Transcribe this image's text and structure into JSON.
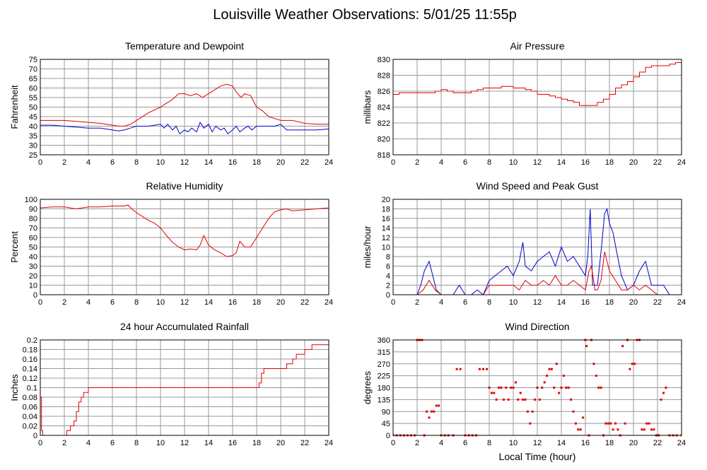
{
  "title": "Louisville Weather Observations: 5/01/25 11:55p",
  "xlabel": "Local Time (hour)",
  "chart_data": [
    {
      "id": "temp",
      "type": "line",
      "title": "Temperature and Dewpoint",
      "ylabel": "Fahrenheit",
      "xlim": [
        0,
        24
      ],
      "ylim": [
        25,
        75
      ],
      "xticks": [
        0,
        2,
        4,
        6,
        8,
        10,
        12,
        14,
        16,
        18,
        20,
        22,
        24
      ],
      "yticks": [
        25,
        30,
        35,
        40,
        45,
        50,
        55,
        60,
        65,
        70,
        75
      ],
      "grid": true,
      "step": false,
      "series": [
        {
          "color": "#e00000",
          "x": [
            0,
            1,
            2,
            3,
            4,
            5,
            6,
            6.5,
            7,
            7.5,
            8,
            9,
            10,
            10.5,
            11,
            11.5,
            12,
            12.5,
            13,
            13.5,
            14,
            14.5,
            15,
            15.5,
            16,
            16.3,
            16.7,
            17,
            17.5,
            18,
            18.5,
            19,
            19.5,
            20,
            20.5,
            21,
            22,
            23,
            24
          ],
          "y": [
            43,
            43,
            43,
            42.5,
            42,
            41.5,
            40.5,
            40,
            40,
            41,
            43,
            47,
            50,
            52,
            54,
            57,
            57,
            56,
            57,
            55,
            57,
            59,
            61,
            62,
            61,
            58,
            55,
            57,
            56,
            50,
            48,
            45,
            44,
            43,
            43,
            43,
            41.5,
            41,
            41
          ]
        },
        {
          "color": "#0000cc",
          "x": [
            0,
            1,
            2,
            3,
            4,
            5,
            6,
            6.5,
            7,
            7.5,
            8,
            9,
            10,
            10.3,
            10.6,
            11,
            11.3,
            11.6,
            12,
            12.3,
            12.6,
            13,
            13.3,
            13.6,
            14,
            14.3,
            14.6,
            15,
            15.3,
            15.6,
            16,
            16.3,
            16.6,
            17,
            17.3,
            17.6,
            18,
            18.5,
            19,
            19.5,
            20,
            20.5,
            21,
            22,
            23,
            24
          ],
          "y": [
            40.5,
            40.5,
            40,
            39.5,
            39,
            39,
            38,
            37.5,
            38,
            39,
            40,
            40,
            41,
            39,
            41,
            38,
            40,
            36,
            38,
            37,
            39,
            37,
            42,
            39,
            41,
            37,
            40,
            38,
            39,
            36,
            38,
            40,
            37,
            39,
            40,
            38,
            40,
            40,
            40,
            40,
            41,
            38,
            38,
            38,
            38,
            38.5
          ]
        }
      ]
    },
    {
      "id": "pressure",
      "type": "line",
      "title": "Air Pressure",
      "ylabel": "millibars",
      "xlim": [
        0,
        24
      ],
      "ylim": [
        818,
        830
      ],
      "xticks": [
        0,
        2,
        4,
        6,
        8,
        10,
        12,
        14,
        16,
        18,
        20,
        22,
        24
      ],
      "yticks": [
        818,
        820,
        822,
        824,
        826,
        828,
        830
      ],
      "grid": true,
      "step": true,
      "series": [
        {
          "color": "#e00000",
          "x": [
            0,
            0.5,
            1,
            2,
            3,
            3.5,
            4,
            4.5,
            5,
            6,
            6.5,
            7,
            7.5,
            8,
            9,
            10,
            11,
            11.5,
            12,
            13,
            13.5,
            14,
            14.5,
            15,
            15.5,
            16,
            16.5,
            17,
            17.5,
            18,
            18.5,
            19,
            19.5,
            20,
            20.5,
            21,
            21.5,
            22,
            23,
            23.5,
            24
          ],
          "y": [
            825.6,
            825.8,
            825.8,
            825.8,
            825.8,
            826.0,
            826.2,
            826.0,
            825.8,
            825.8,
            826.0,
            826.2,
            826.4,
            826.4,
            826.6,
            826.4,
            826.2,
            826.0,
            825.6,
            825.4,
            825.2,
            825.0,
            824.8,
            824.6,
            824.2,
            824.2,
            824.2,
            824.6,
            825.0,
            825.6,
            826.4,
            826.8,
            827.2,
            827.8,
            828.4,
            829.0,
            829.2,
            829.2,
            829.4,
            829.6,
            829.8
          ]
        }
      ]
    },
    {
      "id": "humidity",
      "type": "line",
      "title": "Relative Humidity",
      "ylabel": "Percent",
      "xlim": [
        0,
        24
      ],
      "ylim": [
        0,
        100
      ],
      "xticks": [
        0,
        2,
        4,
        6,
        8,
        10,
        12,
        14,
        16,
        18,
        20,
        22,
        24
      ],
      "yticks": [
        0,
        10,
        20,
        30,
        40,
        50,
        60,
        70,
        80,
        90,
        100
      ],
      "grid": true,
      "step": false,
      "series": [
        {
          "color": "#e00000",
          "x": [
            0,
            1,
            2,
            3,
            4,
            5,
            6,
            7,
            7.3,
            7.6,
            8,
            8.5,
            9,
            9.5,
            10,
            10.5,
            11,
            11.5,
            12,
            12.5,
            13,
            13.3,
            13.6,
            14,
            14.5,
            15,
            15.5,
            16,
            16.3,
            16.6,
            17,
            17.5,
            18,
            18.5,
            19,
            19.5,
            20,
            20.5,
            21,
            22,
            23,
            24
          ],
          "y": [
            91,
            92,
            92,
            90,
            92,
            92,
            93,
            93,
            94,
            90,
            86,
            82,
            78,
            75,
            70,
            62,
            55,
            50,
            47,
            48,
            47,
            52,
            62,
            52,
            47,
            44,
            40,
            41,
            44,
            56,
            50,
            50,
            60,
            70,
            80,
            87,
            89,
            90,
            88,
            89,
            90,
            91
          ]
        }
      ]
    },
    {
      "id": "wind",
      "type": "line",
      "title": "Wind Speed and Peak Gust",
      "ylabel": "miles/hour",
      "xlim": [
        0,
        24
      ],
      "ylim": [
        0,
        20
      ],
      "xticks": [
        0,
        2,
        4,
        6,
        8,
        10,
        12,
        14,
        16,
        18,
        20,
        22,
        24
      ],
      "yticks": [
        0,
        2,
        4,
        6,
        8,
        10,
        12,
        14,
        16,
        18,
        20
      ],
      "grid": true,
      "step": false,
      "series": [
        {
          "color": "#0000cc",
          "x": [
            0,
            1,
            2,
            2.3,
            2.6,
            3,
            3.3,
            3.6,
            4,
            5,
            5.5,
            6,
            6.5,
            7,
            7.5,
            8,
            8.5,
            9,
            9.5,
            10,
            10.5,
            10.8,
            11,
            11.5,
            12,
            12.5,
            13,
            13.5,
            14,
            14.5,
            15,
            15.5,
            16,
            16.2,
            16.4,
            16.6,
            17,
            17.3,
            17.6,
            17.8,
            18,
            18.3,
            18.6,
            19,
            19.5,
            20,
            20.5,
            21,
            21.5,
            22,
            22.5,
            23,
            24
          ],
          "y": [
            0,
            0,
            0,
            2,
            5,
            7,
            4,
            1,
            0,
            0,
            2,
            0,
            0,
            1,
            0,
            3,
            4,
            5,
            6,
            4,
            7,
            11,
            6,
            5,
            7,
            8,
            9,
            6,
            10,
            7,
            8,
            6,
            4,
            8,
            18,
            2,
            2,
            9,
            17,
            18,
            15,
            13,
            9,
            4,
            1,
            2,
            5,
            7,
            2,
            2,
            2,
            0,
            0
          ]
        },
        {
          "color": "#e00000",
          "x": [
            0,
            1,
            2,
            2.5,
            3,
            3.5,
            4,
            5,
            6,
            7,
            7.5,
            8,
            9,
            10,
            10.5,
            11,
            11.5,
            12,
            12.5,
            13,
            13.5,
            14,
            14.5,
            15,
            15.5,
            16,
            16.3,
            16.5,
            16.8,
            17,
            17.3,
            17.6,
            17.8,
            18,
            18.5,
            19,
            19.5,
            20,
            20.5,
            21,
            21.5,
            22,
            23,
            24
          ],
          "y": [
            0,
            0,
            0,
            1,
            3,
            1,
            0,
            0,
            0,
            0,
            0,
            2,
            2,
            2,
            1,
            3,
            2,
            2,
            3,
            2,
            4,
            2,
            2,
            3,
            2,
            1,
            5,
            6,
            1,
            1,
            3,
            9,
            7,
            5,
            3,
            1,
            1,
            2,
            1,
            2,
            1,
            0,
            0,
            0
          ]
        }
      ]
    },
    {
      "id": "rain",
      "type": "line",
      "title": "24 hour Accumulated Rainfall",
      "ylabel": "Inches",
      "xlim": [
        0,
        24
      ],
      "ylim": [
        0,
        0.2
      ],
      "xticks": [
        0,
        2,
        4,
        6,
        8,
        10,
        12,
        14,
        16,
        18,
        20,
        22,
        24
      ],
      "yticks": [
        0,
        0.02,
        0.04,
        0.06,
        0.08,
        0.1,
        0.12,
        0.14,
        0.16,
        0.18,
        0.2
      ],
      "grid": true,
      "step": true,
      "series": [
        {
          "color": "#e00000",
          "x": [
            0,
            0.1,
            0.2,
            1,
            2,
            2.2,
            2.5,
            2.8,
            3,
            3.2,
            3.4,
            3.6,
            3.8,
            4,
            6,
            10,
            14,
            18,
            18.2,
            18.4,
            18.6,
            19,
            19.5,
            20,
            20.5,
            21,
            21.3,
            21.6,
            22,
            22.3,
            22.6,
            24
          ],
          "y": [
            0.08,
            0.01,
            0,
            0,
            0,
            0.01,
            0.02,
            0.03,
            0.05,
            0.07,
            0.08,
            0.09,
            0.09,
            0.1,
            0.1,
            0.1,
            0.1,
            0.1,
            0.11,
            0.13,
            0.14,
            0.14,
            0.14,
            0.14,
            0.15,
            0.16,
            0.17,
            0.17,
            0.18,
            0.18,
            0.19,
            0.19
          ]
        }
      ]
    },
    {
      "id": "direction",
      "type": "scatter",
      "title": "Wind Direction",
      "ylabel": "degrees",
      "xlim": [
        0,
        24
      ],
      "ylim": [
        0,
        360
      ],
      "xticks": [
        0,
        2,
        4,
        6,
        8,
        10,
        12,
        14,
        16,
        18,
        20,
        22,
        24
      ],
      "yticks": [
        0,
        45,
        90,
        135,
        180,
        225,
        270,
        315,
        360
      ],
      "grid": true,
      "series": [
        {
          "color": "#e00000",
          "x": [
            0,
            0.3,
            0.6,
            0.9,
            1.2,
            1.5,
            1.8,
            2,
            2.2,
            2.4,
            2.6,
            2.8,
            3,
            3.2,
            3.4,
            3.6,
            3.8,
            4,
            4.3,
            4.6,
            5,
            5.3,
            5.6,
            6,
            6.3,
            6.6,
            6.9,
            7.2,
            7.5,
            7.8,
            8,
            8.2,
            8.4,
            8.6,
            8.8,
            9,
            9.2,
            9.4,
            9.6,
            9.8,
            10,
            10.2,
            10.4,
            10.6,
            10.8,
            11,
            11.2,
            11.4,
            11.6,
            11.8,
            12,
            12.2,
            12.4,
            12.6,
            12.8,
            13,
            13.2,
            13.4,
            13.6,
            13.8,
            14,
            14.2,
            14.4,
            14.6,
            14.8,
            15,
            15.2,
            15.4,
            15.6,
            15.8,
            16,
            16.1,
            16.3,
            16.5,
            16.7,
            16.9,
            17.1,
            17.3,
            17.5,
            17.7,
            17.9,
            18.1,
            18.3,
            18.5,
            18.7,
            18.9,
            19.1,
            19.3,
            19.5,
            19.7,
            19.9,
            20.1,
            20.3,
            20.5,
            20.7,
            20.9,
            21.1,
            21.3,
            21.5,
            21.7,
            21.9,
            22.1,
            22.3,
            22.5,
            22.7,
            23,
            23.3,
            23.6,
            24
          ],
          "y": [
            0,
            0,
            0,
            0,
            0,
            0,
            0,
            360,
            360,
            360,
            0,
            90,
            67,
            90,
            90,
            112,
            112,
            0,
            0,
            0,
            0,
            250,
            250,
            0,
            0,
            0,
            0,
            250,
            250,
            250,
            180,
            160,
            160,
            135,
            180,
            180,
            135,
            180,
            135,
            180,
            180,
            200,
            135,
            160,
            135,
            135,
            90,
            45,
            90,
            135,
            180,
            135,
            180,
            200,
            225,
            250,
            250,
            180,
            270,
            160,
            180,
            225,
            180,
            180,
            135,
            90,
            45,
            22,
            22,
            67,
            360,
            337,
            0,
            360,
            270,
            225,
            180,
            180,
            0,
            45,
            45,
            45,
            22,
            45,
            22,
            0,
            337,
            45,
            360,
            250,
            270,
            270,
            360,
            360,
            22,
            22,
            45,
            45,
            22,
            22,
            0,
            0,
            135,
            160,
            180,
            0,
            0,
            0,
            0
          ]
        }
      ]
    }
  ]
}
